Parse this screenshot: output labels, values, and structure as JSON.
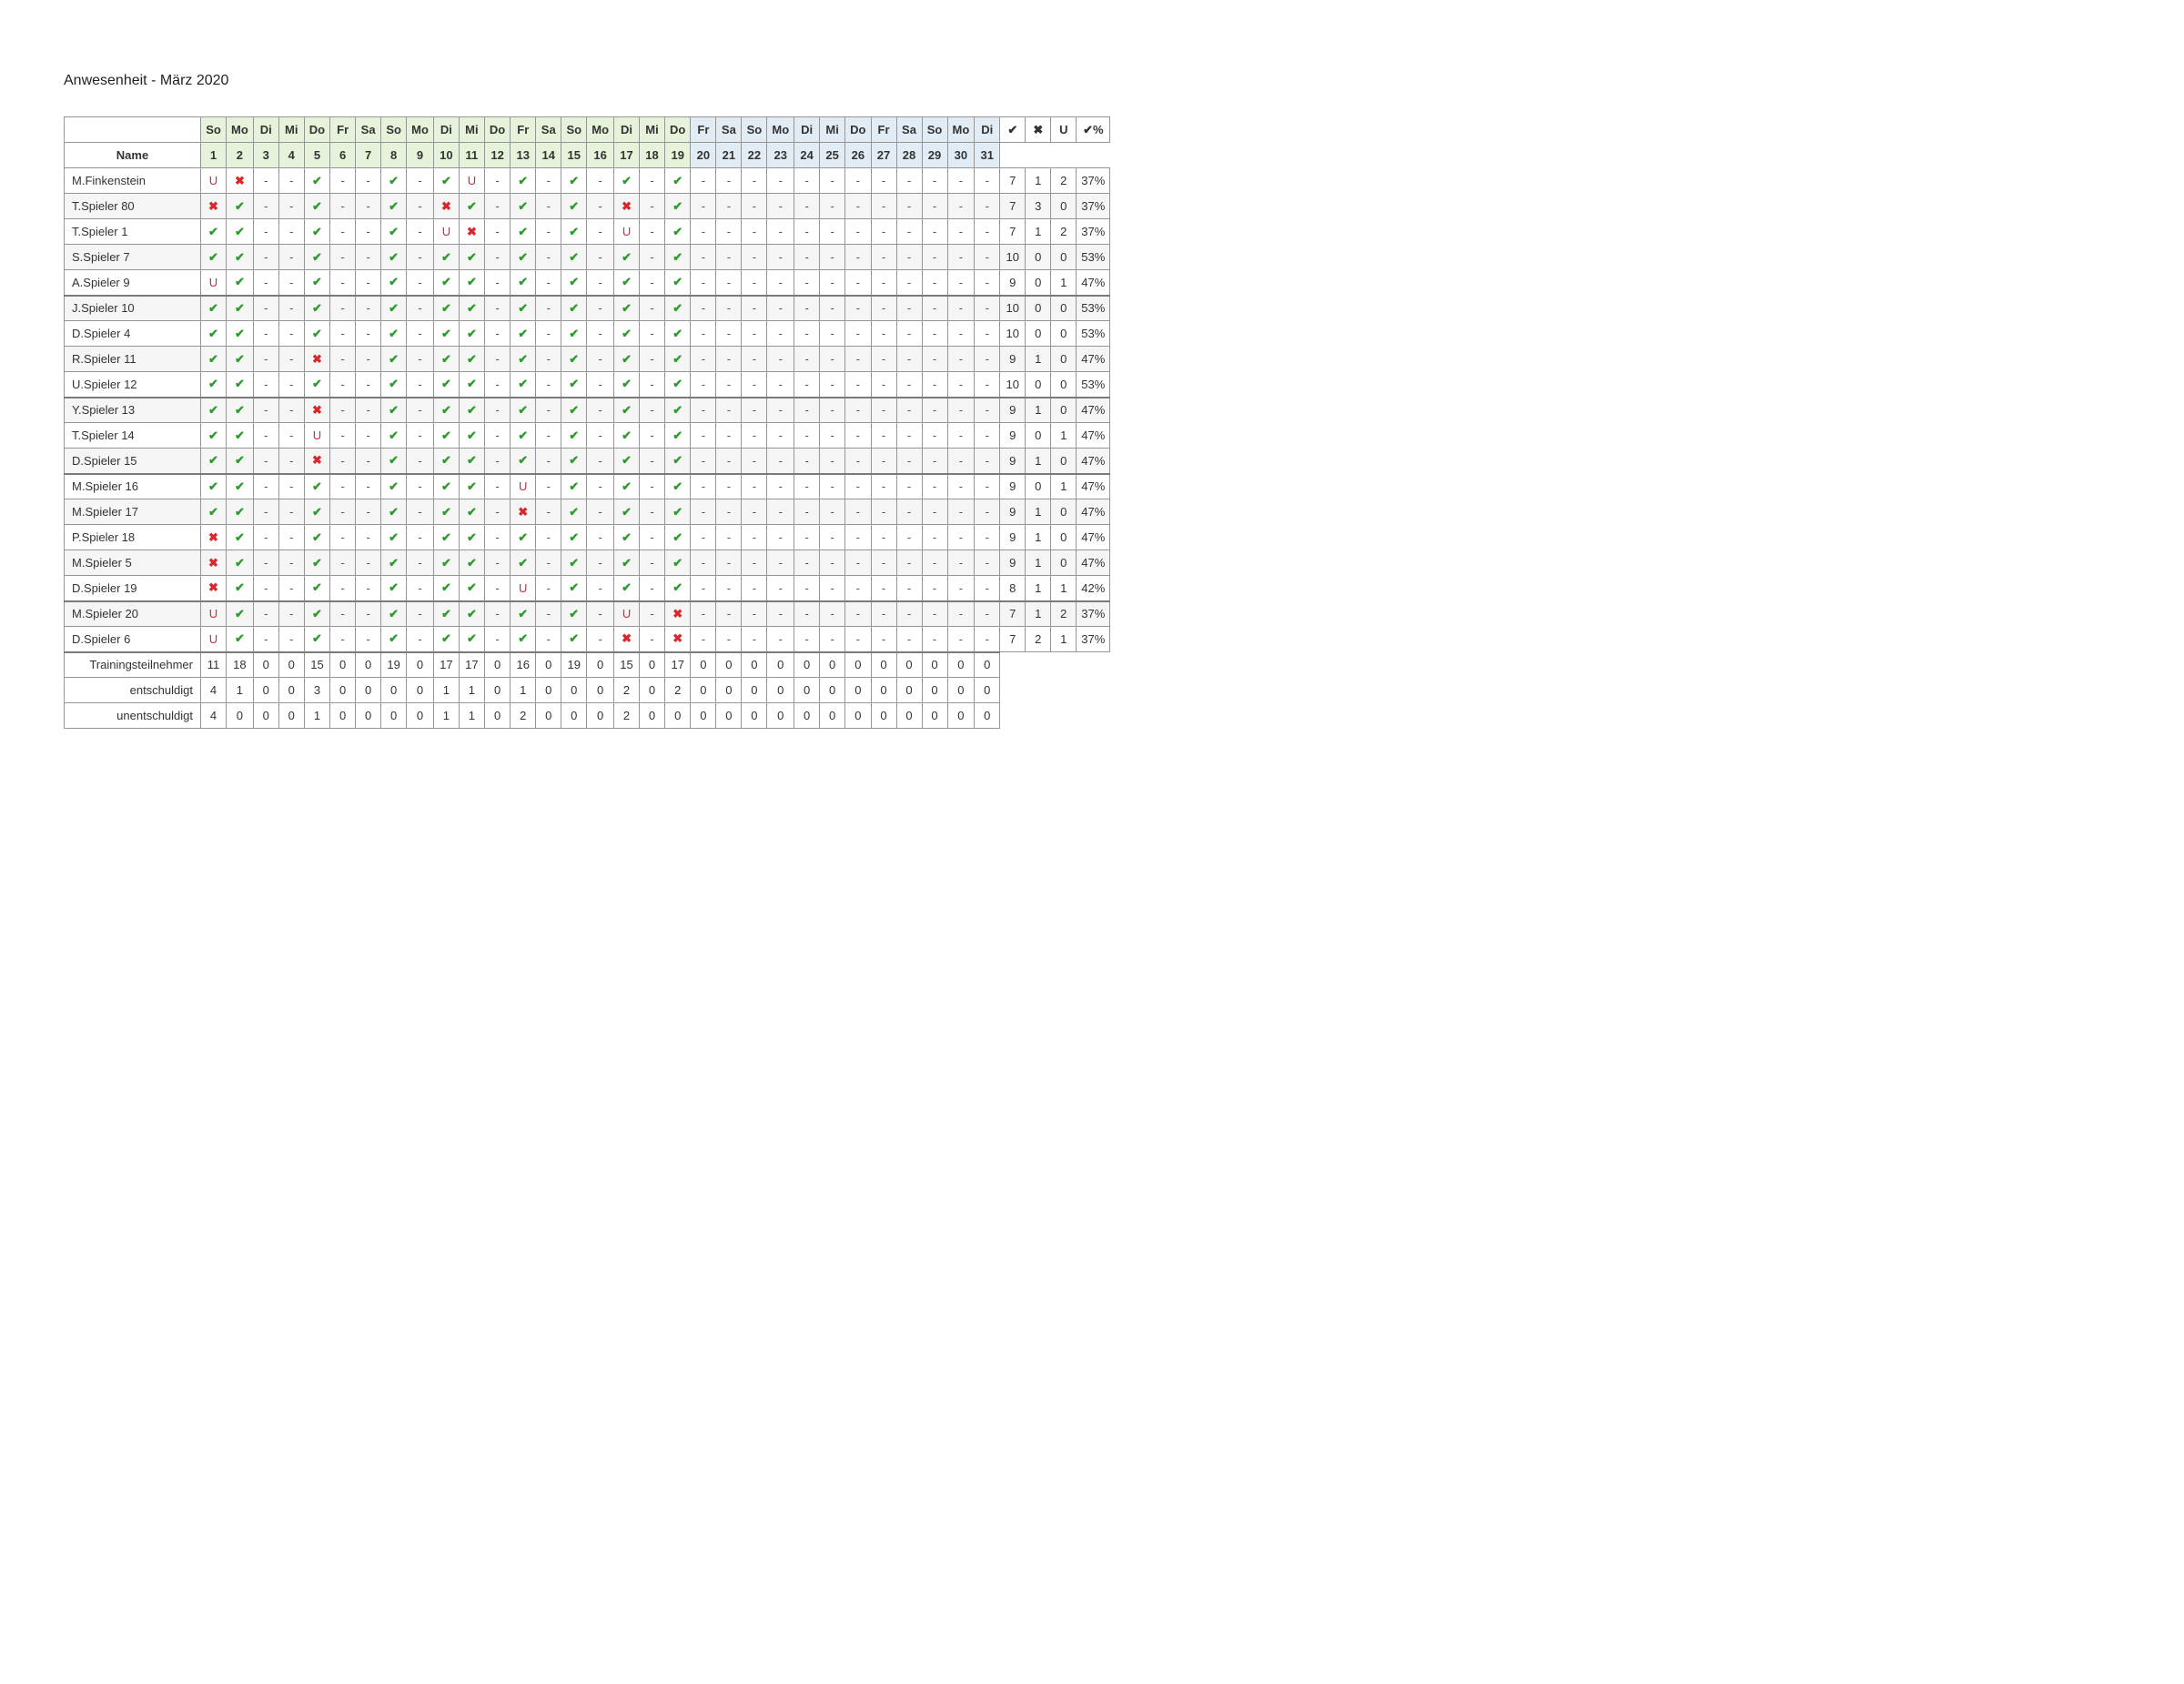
{
  "title": "Anwesenheit - März 2020",
  "name_header": "Name",
  "icons": {
    "check": "✔",
    "cross": "✖",
    "u": "U",
    "dash": "-"
  },
  "days": [
    {
      "wd": "So",
      "n": "1",
      "tone": "green"
    },
    {
      "wd": "Mo",
      "n": "2",
      "tone": "green"
    },
    {
      "wd": "Di",
      "n": "3",
      "tone": "green"
    },
    {
      "wd": "Mi",
      "n": "4",
      "tone": "green"
    },
    {
      "wd": "Do",
      "n": "5",
      "tone": "green"
    },
    {
      "wd": "Fr",
      "n": "6",
      "tone": "green"
    },
    {
      "wd": "Sa",
      "n": "7",
      "tone": "green"
    },
    {
      "wd": "So",
      "n": "8",
      "tone": "green"
    },
    {
      "wd": "Mo",
      "n": "9",
      "tone": "green"
    },
    {
      "wd": "Di",
      "n": "10",
      "tone": "green"
    },
    {
      "wd": "Mi",
      "n": "11",
      "tone": "green"
    },
    {
      "wd": "Do",
      "n": "12",
      "tone": "green"
    },
    {
      "wd": "Fr",
      "n": "13",
      "tone": "green"
    },
    {
      "wd": "Sa",
      "n": "14",
      "tone": "green"
    },
    {
      "wd": "So",
      "n": "15",
      "tone": "green"
    },
    {
      "wd": "Mo",
      "n": "16",
      "tone": "green"
    },
    {
      "wd": "Di",
      "n": "17",
      "tone": "green"
    },
    {
      "wd": "Mi",
      "n": "18",
      "tone": "green"
    },
    {
      "wd": "Do",
      "n": "19",
      "tone": "green"
    },
    {
      "wd": "Fr",
      "n": "20",
      "tone": "blue"
    },
    {
      "wd": "Sa",
      "n": "21",
      "tone": "blue"
    },
    {
      "wd": "So",
      "n": "22",
      "tone": "blue"
    },
    {
      "wd": "Mo",
      "n": "23",
      "tone": "blue"
    },
    {
      "wd": "Di",
      "n": "24",
      "tone": "blue"
    },
    {
      "wd": "Mi",
      "n": "25",
      "tone": "blue"
    },
    {
      "wd": "Do",
      "n": "26",
      "tone": "blue"
    },
    {
      "wd": "Fr",
      "n": "27",
      "tone": "blue"
    },
    {
      "wd": "Sa",
      "n": "28",
      "tone": "blue"
    },
    {
      "wd": "So",
      "n": "29",
      "tone": "blue"
    },
    {
      "wd": "Mo",
      "n": "30",
      "tone": "blue"
    },
    {
      "wd": "Di",
      "n": "31",
      "tone": "blue"
    }
  ],
  "stat_headers": [
    "✔",
    "✖",
    "U",
    "✔%"
  ],
  "groups": [
    0,
    5,
    9,
    12,
    17,
    19
  ],
  "players": [
    {
      "name": "M.Finkenstein",
      "cells": [
        "U",
        "x",
        "-",
        "-",
        "c",
        "-",
        "-",
        "c",
        "-",
        "c",
        "U",
        "-",
        "c",
        "-",
        "c",
        "-",
        "c",
        "-",
        "c",
        "-",
        "-",
        "-",
        "-",
        "-",
        "-",
        "-",
        "-",
        "-",
        "-",
        "-",
        "-"
      ],
      "stats": [
        "7",
        "1",
        "2",
        "37%"
      ]
    },
    {
      "name": "T.Spieler 80",
      "cells": [
        "x",
        "c",
        "-",
        "-",
        "c",
        "-",
        "-",
        "c",
        "-",
        "x",
        "c",
        "-",
        "c",
        "-",
        "c",
        "-",
        "x",
        "-",
        "c",
        "-",
        "-",
        "-",
        "-",
        "-",
        "-",
        "-",
        "-",
        "-",
        "-",
        "-",
        "-"
      ],
      "stats": [
        "7",
        "3",
        "0",
        "37%"
      ]
    },
    {
      "name": "T.Spieler 1",
      "cells": [
        "c",
        "c",
        "-",
        "-",
        "c",
        "-",
        "-",
        "c",
        "-",
        "U",
        "x",
        "-",
        "c",
        "-",
        "c",
        "-",
        "U",
        "-",
        "c",
        "-",
        "-",
        "-",
        "-",
        "-",
        "-",
        "-",
        "-",
        "-",
        "-",
        "-",
        "-"
      ],
      "stats": [
        "7",
        "1",
        "2",
        "37%"
      ]
    },
    {
      "name": "S.Spieler 7",
      "cells": [
        "c",
        "c",
        "-",
        "-",
        "c",
        "-",
        "-",
        "c",
        "-",
        "c",
        "c",
        "-",
        "c",
        "-",
        "c",
        "-",
        "c",
        "-",
        "c",
        "-",
        "-",
        "-",
        "-",
        "-",
        "-",
        "-",
        "-",
        "-",
        "-",
        "-",
        "-"
      ],
      "stats": [
        "10",
        "0",
        "0",
        "53%"
      ]
    },
    {
      "name": "A.Spieler 9",
      "cells": [
        "U",
        "c",
        "-",
        "-",
        "c",
        "-",
        "-",
        "c",
        "-",
        "c",
        "c",
        "-",
        "c",
        "-",
        "c",
        "-",
        "c",
        "-",
        "c",
        "-",
        "-",
        "-",
        "-",
        "-",
        "-",
        "-",
        "-",
        "-",
        "-",
        "-",
        "-"
      ],
      "stats": [
        "9",
        "0",
        "1",
        "47%"
      ]
    },
    {
      "name": "J.Spieler 10",
      "cells": [
        "c",
        "c",
        "-",
        "-",
        "c",
        "-",
        "-",
        "c",
        "-",
        "c",
        "c",
        "-",
        "c",
        "-",
        "c",
        "-",
        "c",
        "-",
        "c",
        "-",
        "-",
        "-",
        "-",
        "-",
        "-",
        "-",
        "-",
        "-",
        "-",
        "-",
        "-"
      ],
      "stats": [
        "10",
        "0",
        "0",
        "53%"
      ]
    },
    {
      "name": "D.Spieler 4",
      "cells": [
        "c",
        "c",
        "-",
        "-",
        "c",
        "-",
        "-",
        "c",
        "-",
        "c",
        "c",
        "-",
        "c",
        "-",
        "c",
        "-",
        "c",
        "-",
        "c",
        "-",
        "-",
        "-",
        "-",
        "-",
        "-",
        "-",
        "-",
        "-",
        "-",
        "-",
        "-"
      ],
      "stats": [
        "10",
        "0",
        "0",
        "53%"
      ]
    },
    {
      "name": "R.Spieler 11",
      "cells": [
        "c",
        "c",
        "-",
        "-",
        "x",
        "-",
        "-",
        "c",
        "-",
        "c",
        "c",
        "-",
        "c",
        "-",
        "c",
        "-",
        "c",
        "-",
        "c",
        "-",
        "-",
        "-",
        "-",
        "-",
        "-",
        "-",
        "-",
        "-",
        "-",
        "-",
        "-"
      ],
      "stats": [
        "9",
        "1",
        "0",
        "47%"
      ]
    },
    {
      "name": "U.Spieler 12",
      "cells": [
        "c",
        "c",
        "-",
        "-",
        "c",
        "-",
        "-",
        "c",
        "-",
        "c",
        "c",
        "-",
        "c",
        "-",
        "c",
        "-",
        "c",
        "-",
        "c",
        "-",
        "-",
        "-",
        "-",
        "-",
        "-",
        "-",
        "-",
        "-",
        "-",
        "-",
        "-"
      ],
      "stats": [
        "10",
        "0",
        "0",
        "53%"
      ]
    },
    {
      "name": "Y.Spieler 13",
      "cells": [
        "c",
        "c",
        "-",
        "-",
        "x",
        "-",
        "-",
        "c",
        "-",
        "c",
        "c",
        "-",
        "c",
        "-",
        "c",
        "-",
        "c",
        "-",
        "c",
        "-",
        "-",
        "-",
        "-",
        "-",
        "-",
        "-",
        "-",
        "-",
        "-",
        "-",
        "-"
      ],
      "stats": [
        "9",
        "1",
        "0",
        "47%"
      ]
    },
    {
      "name": "T.Spieler 14",
      "cells": [
        "c",
        "c",
        "-",
        "-",
        "U",
        "-",
        "-",
        "c",
        "-",
        "c",
        "c",
        "-",
        "c",
        "-",
        "c",
        "-",
        "c",
        "-",
        "c",
        "-",
        "-",
        "-",
        "-",
        "-",
        "-",
        "-",
        "-",
        "-",
        "-",
        "-",
        "-"
      ],
      "stats": [
        "9",
        "0",
        "1",
        "47%"
      ]
    },
    {
      "name": "D.Spieler 15",
      "cells": [
        "c",
        "c",
        "-",
        "-",
        "x",
        "-",
        "-",
        "c",
        "-",
        "c",
        "c",
        "-",
        "c",
        "-",
        "c",
        "-",
        "c",
        "-",
        "c",
        "-",
        "-",
        "-",
        "-",
        "-",
        "-",
        "-",
        "-",
        "-",
        "-",
        "-",
        "-"
      ],
      "stats": [
        "9",
        "1",
        "0",
        "47%"
      ]
    },
    {
      "name": "M.Spieler 16",
      "cells": [
        "c",
        "c",
        "-",
        "-",
        "c",
        "-",
        "-",
        "c",
        "-",
        "c",
        "c",
        "-",
        "U",
        "-",
        "c",
        "-",
        "c",
        "-",
        "c",
        "-",
        "-",
        "-",
        "-",
        "-",
        "-",
        "-",
        "-",
        "-",
        "-",
        "-",
        "-"
      ],
      "stats": [
        "9",
        "0",
        "1",
        "47%"
      ]
    },
    {
      "name": "M.Spieler 17",
      "cells": [
        "c",
        "c",
        "-",
        "-",
        "c",
        "-",
        "-",
        "c",
        "-",
        "c",
        "c",
        "-",
        "x",
        "-",
        "c",
        "-",
        "c",
        "-",
        "c",
        "-",
        "-",
        "-",
        "-",
        "-",
        "-",
        "-",
        "-",
        "-",
        "-",
        "-",
        "-"
      ],
      "stats": [
        "9",
        "1",
        "0",
        "47%"
      ]
    },
    {
      "name": "P.Spieler 18",
      "cells": [
        "x",
        "c",
        "-",
        "-",
        "c",
        "-",
        "-",
        "c",
        "-",
        "c",
        "c",
        "-",
        "c",
        "-",
        "c",
        "-",
        "c",
        "-",
        "c",
        "-",
        "-",
        "-",
        "-",
        "-",
        "-",
        "-",
        "-",
        "-",
        "-",
        "-",
        "-"
      ],
      "stats": [
        "9",
        "1",
        "0",
        "47%"
      ]
    },
    {
      "name": "M.Spieler 5",
      "cells": [
        "x",
        "c",
        "-",
        "-",
        "c",
        "-",
        "-",
        "c",
        "-",
        "c",
        "c",
        "-",
        "c",
        "-",
        "c",
        "-",
        "c",
        "-",
        "c",
        "-",
        "-",
        "-",
        "-",
        "-",
        "-",
        "-",
        "-",
        "-",
        "-",
        "-",
        "-"
      ],
      "stats": [
        "9",
        "1",
        "0",
        "47%"
      ]
    },
    {
      "name": "D.Spieler 19",
      "cells": [
        "x",
        "c",
        "-",
        "-",
        "c",
        "-",
        "-",
        "c",
        "-",
        "c",
        "c",
        "-",
        "U",
        "-",
        "c",
        "-",
        "c",
        "-",
        "c",
        "-",
        "-",
        "-",
        "-",
        "-",
        "-",
        "-",
        "-",
        "-",
        "-",
        "-",
        "-"
      ],
      "stats": [
        "8",
        "1",
        "1",
        "42%"
      ]
    },
    {
      "name": "M.Spieler 20",
      "cells": [
        "U",
        "c",
        "-",
        "-",
        "c",
        "-",
        "-",
        "c",
        "-",
        "c",
        "c",
        "-",
        "c",
        "-",
        "c",
        "-",
        "U",
        "-",
        "x",
        "-",
        "-",
        "-",
        "-",
        "-",
        "-",
        "-",
        "-",
        "-",
        "-",
        "-",
        "-"
      ],
      "stats": [
        "7",
        "1",
        "2",
        "37%"
      ]
    },
    {
      "name": "D.Spieler 6",
      "cells": [
        "U",
        "c",
        "-",
        "-",
        "c",
        "-",
        "-",
        "c",
        "-",
        "c",
        "c",
        "-",
        "c",
        "-",
        "c",
        "-",
        "x",
        "-",
        "x",
        "-",
        "-",
        "-",
        "-",
        "-",
        "-",
        "-",
        "-",
        "-",
        "-",
        "-",
        "-"
      ],
      "stats": [
        "7",
        "2",
        "1",
        "37%"
      ]
    }
  ],
  "summary": [
    {
      "label": "Trainingsteilnehmer",
      "values": [
        "11",
        "18",
        "0",
        "0",
        "15",
        "0",
        "0",
        "19",
        "0",
        "17",
        "17",
        "0",
        "16",
        "0",
        "19",
        "0",
        "15",
        "0",
        "17",
        "0",
        "0",
        "0",
        "0",
        "0",
        "0",
        "0",
        "0",
        "0",
        "0",
        "0",
        "0"
      ]
    },
    {
      "label": "entschuldigt",
      "values": [
        "4",
        "1",
        "0",
        "0",
        "3",
        "0",
        "0",
        "0",
        "0",
        "1",
        "1",
        "0",
        "1",
        "0",
        "0",
        "0",
        "2",
        "0",
        "2",
        "0",
        "0",
        "0",
        "0",
        "0",
        "0",
        "0",
        "0",
        "0",
        "0",
        "0",
        "0"
      ]
    },
    {
      "label": "unentschuldigt",
      "values": [
        "4",
        "0",
        "0",
        "0",
        "1",
        "0",
        "0",
        "0",
        "0",
        "1",
        "1",
        "0",
        "2",
        "0",
        "0",
        "0",
        "2",
        "0",
        "0",
        "0",
        "0",
        "0",
        "0",
        "0",
        "0",
        "0",
        "0",
        "0",
        "0",
        "0",
        "0"
      ]
    }
  ]
}
